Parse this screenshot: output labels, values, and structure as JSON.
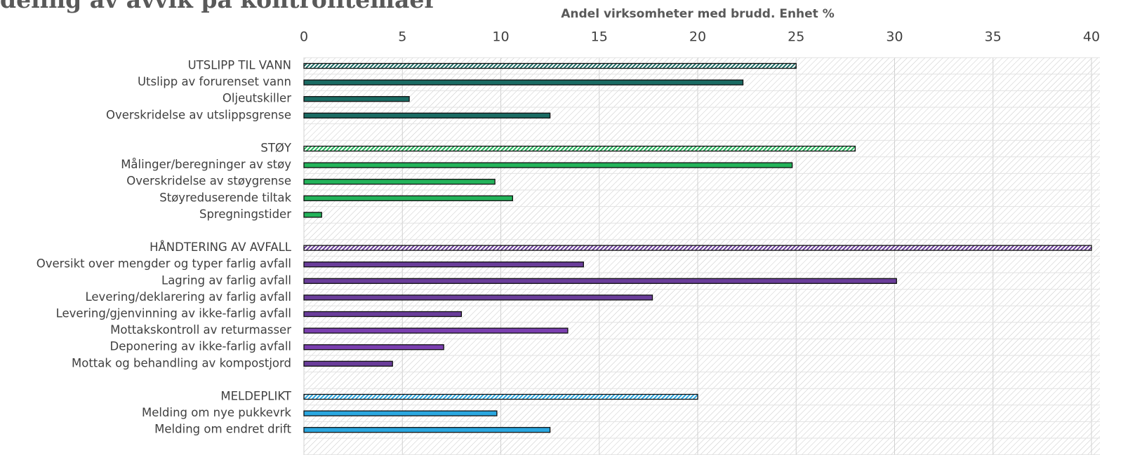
{
  "chart_data": {
    "type": "bar",
    "orientation": "horizontal",
    "title": "deling av avvik på kontrolltemaer",
    "x_axis_label": "Andel virksomheter med brudd. Enhet %",
    "categories": [
      "UTSLIPP TIL VANN",
      "Utslipp av forurenset vann",
      "Oljeutskiller",
      "Overskridelse av utslippsgrense",
      null,
      "STØY",
      "Målinger/beregninger av støy",
      "Overskridelse av støygrense",
      "Støyreduserende tiltak",
      "Spregningstider",
      null,
      "HÅNDTERING AV AVFALL",
      "Oversikt over mengder og typer farlig avfall",
      "Lagring av farlig avfall",
      "Levering/deklarering av farlig avfall",
      "Levering/gjenvinning av ikke-farlig avfall",
      "Mottakskontroll av returmasser",
      "Deponering av ikke-farlig avfall",
      "Mottak og behandling av kompostjord",
      null,
      "MELDEPLIKT",
      "Melding om nye pukkevrk",
      "Melding om endret drift"
    ],
    "values": [
      25,
      22.3,
      5.35,
      12.5,
      null,
      28,
      24.8,
      9.7,
      10.6,
      0.9,
      null,
      40,
      14.2,
      30.1,
      17.7,
      8.0,
      13.4,
      7.1,
      4.5,
      null,
      20,
      9.8,
      12.5
    ],
    "colors": [
      "#1a6b63",
      "#1a6b63",
      "#1a6b63",
      "#1a6b63",
      null,
      "#23b35a",
      "#23b35a",
      "#23b35a",
      "#23b35a",
      "#23b35a",
      null,
      "#6a3d9a",
      "#6a3d9a",
      "#6a3d9a",
      "#6a3d9a",
      "#6a3d9a",
      "#7b3fb0",
      "#7b3fb0",
      "#6a3d9a",
      null,
      "#2aa7e0",
      "#2aa7e0",
      "#2aa7e0"
    ],
    "hatched": [
      true,
      false,
      false,
      false,
      null,
      true,
      false,
      false,
      false,
      false,
      null,
      true,
      false,
      false,
      false,
      false,
      false,
      false,
      false,
      null,
      true,
      false,
      false
    ],
    "xlim": [
      0,
      40
    ],
    "xticks": [
      0,
      5,
      10,
      15,
      20,
      25,
      30,
      35,
      40
    ],
    "grid": true
  }
}
